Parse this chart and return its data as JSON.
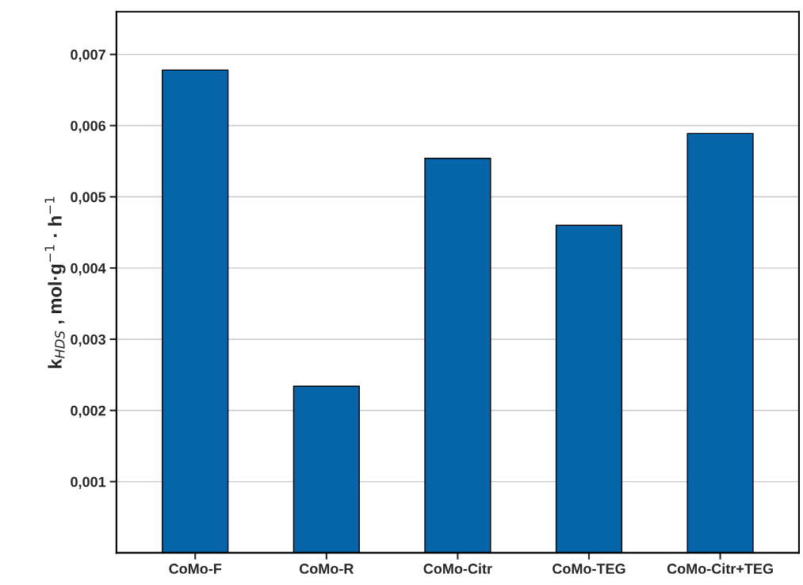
{
  "chart_data": {
    "type": "bar",
    "ylabel": "k$_{HDS}$ , mol·g$^{−1}$ · h$^{−1}$",
    "categories": [
      "CoMo-F",
      "CoMo-R",
      "CoMo-Citr",
      "CoMo-TEG",
      "CoMo-Citr+TEG"
    ],
    "values": [
      0.00678,
      0.00234,
      0.00554,
      0.0046,
      0.00589
    ],
    "color": "#0565a8",
    "ylim": [
      0,
      0.0076
    ],
    "yticks": [
      {
        "value": 0.001,
        "label": "0,001"
      },
      {
        "value": 0.002,
        "label": "0,002"
      },
      {
        "value": 0.003,
        "label": "0,003"
      },
      {
        "value": 0.004,
        "label": "0,004"
      },
      {
        "value": 0.005,
        "label": "0,005"
      },
      {
        "value": 0.006,
        "label": "0,006"
      },
      {
        "value": 0.007,
        "label": "0,007"
      }
    ],
    "grid": "y",
    "legend": false
  }
}
